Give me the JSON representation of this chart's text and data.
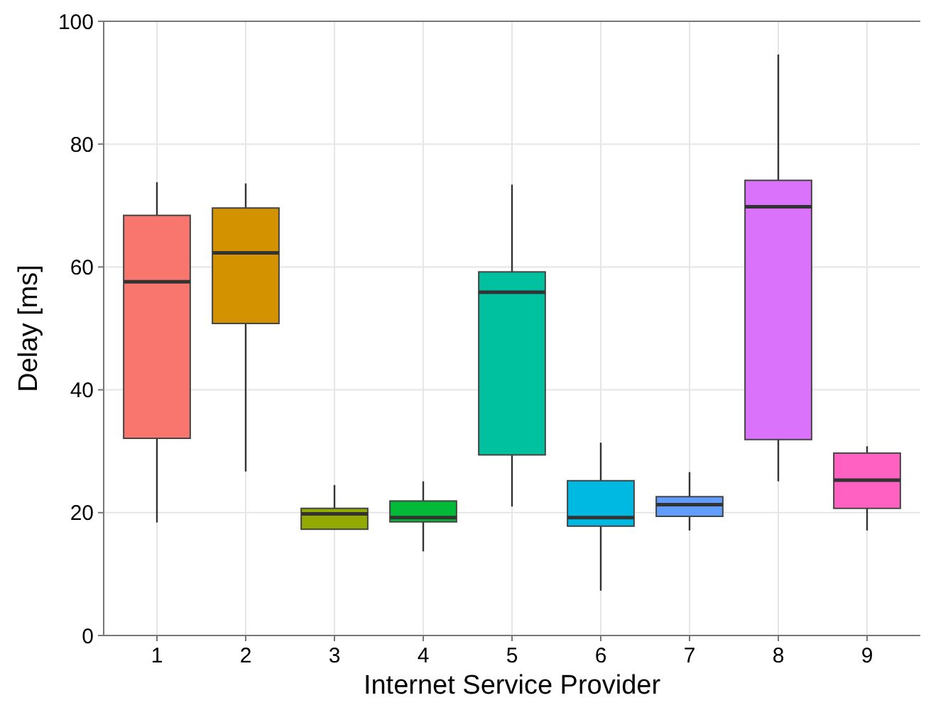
{
  "chart_data": {
    "type": "box",
    "xlabel": "Internet Service Provider",
    "ylabel": "Delay [ms]",
    "categories": [
      "1",
      "2",
      "3",
      "4",
      "5",
      "6",
      "7",
      "8",
      "9"
    ],
    "boxes": [
      {
        "low": 18.4,
        "q1": 32.1,
        "median": 57.6,
        "q3": 68.4,
        "high": 73.8
      },
      {
        "low": 26.7,
        "q1": 50.8,
        "median": 62.3,
        "q3": 69.6,
        "high": 73.6
      },
      {
        "low": 17.3,
        "q1": 17.3,
        "median": 19.8,
        "q3": 20.7,
        "high": 24.5
      },
      {
        "low": 13.7,
        "q1": 18.5,
        "median": 19.2,
        "q3": 21.9,
        "high": 25.1
      },
      {
        "low": 21,
        "q1": 29.4,
        "median": 55.9,
        "q3": 59.2,
        "high": 73.4
      },
      {
        "low": 7.3,
        "q1": 17.8,
        "median": 19.2,
        "q3": 25.2,
        "high": 31.4
      },
      {
        "low": 17.1,
        "q1": 19.4,
        "median": 21.3,
        "q3": 22.6,
        "high": 26.6
      },
      {
        "low": 25.1,
        "q1": 31.9,
        "median": 69.8,
        "q3": 74.1,
        "high": 94.6
      },
      {
        "low": 17.1,
        "q1": 20.7,
        "median": 25.3,
        "q3": 29.7,
        "high": 30.8
      }
    ],
    "colors": [
      "#f8766d",
      "#d39200",
      "#93aa00",
      "#00ba38",
      "#00c19f",
      "#00b9e3",
      "#619cff",
      "#db72fb",
      "#ff61c3"
    ],
    "ylim": [
      0,
      100
    ],
    "yticks": [
      0,
      20,
      40,
      60,
      80,
      100
    ],
    "grid": true
  }
}
